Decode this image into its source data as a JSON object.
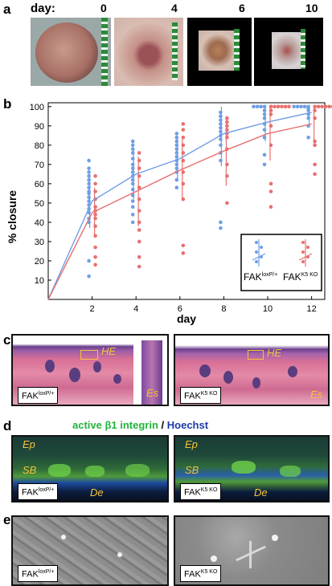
{
  "panels": {
    "a": {
      "letter": "a",
      "day_label": "day:",
      "days": [
        "0",
        "4",
        "6",
        "10"
      ]
    },
    "b": {
      "letter": "b",
      "legend": {
        "wt_label": "FAK",
        "wt_sup": "loxP/+",
        "ko_label": "FAK",
        "ko_sup": "K5 KO"
      }
    },
    "c": {
      "letter": "c",
      "left_label": "FAK",
      "left_sup": "loxP/+",
      "right_label": "FAK",
      "right_sup": "K5 KO",
      "he_label": "HE",
      "es_label": "Es"
    },
    "d": {
      "letter": "d",
      "title_green": "active β1 integrin",
      "title_sep": " / ",
      "title_blue": "Hoechst",
      "ep_label": "Ep",
      "sb_label": "SB",
      "de_label": "De",
      "left_label": "FAK",
      "left_sup": "loxP/+",
      "right_label": "FAK",
      "right_sup": "K5 KO"
    },
    "e": {
      "letter": "e",
      "left_label": "FAK",
      "left_sup": "loxP/+",
      "right_label": "FAK",
      "right_sup": "K5 KO"
    }
  },
  "colors": {
    "wt": "#6f9ee6",
    "ko": "#e8706f"
  },
  "chart_data": {
    "type": "scatter",
    "title": "",
    "xlabel": "day",
    "ylabel": "% closure",
    "xticks": [
      "2",
      "4",
      "6",
      "8",
      "10",
      "12"
    ],
    "yticks": [
      "10",
      "20",
      "30",
      "40",
      "50",
      "60",
      "70",
      "80",
      "90",
      "100"
    ],
    "xlim": [
      0,
      12.6
    ],
    "ylim": [
      0,
      102
    ],
    "series": [
      {
        "name": "FAK loxP/+",
        "color": "#6f9ee6",
        "x": [
          0,
          2,
          4,
          6,
          8,
          10,
          12
        ],
        "mean": [
          0,
          51,
          65,
          73,
          86,
          92,
          97
        ],
        "sd": [
          0,
          14,
          13,
          11,
          17,
          10,
          6
        ],
        "points": {
          "2": [
            72,
            68,
            66,
            64,
            62,
            60,
            58,
            56,
            55,
            53,
            51,
            49,
            47,
            45,
            42,
            40,
            20,
            12
          ],
          "4": [
            82,
            80,
            78,
            76,
            73,
            70,
            68,
            66,
            64,
            62,
            60,
            57,
            54,
            51,
            48,
            44,
            40
          ],
          "6": [
            86,
            84,
            82,
            80,
            78,
            76,
            74,
            72,
            70,
            68,
            66,
            62,
            58
          ],
          "8": [
            97,
            95,
            93,
            91,
            89,
            87,
            85,
            83,
            80,
            76,
            72,
            40,
            37
          ],
          "10": [
            100,
            100,
            100,
            100,
            98,
            96,
            94,
            91,
            88,
            84,
            75,
            70
          ],
          "12": [
            100,
            100,
            100,
            100,
            100,
            99,
            98,
            96,
            94,
            90,
            84
          ]
        }
      },
      {
        "name": "FAK K5 KO",
        "color": "#e8706f",
        "x": [
          0,
          2,
          4,
          6,
          8,
          10,
          12
        ],
        "mean": [
          0,
          45,
          56,
          67,
          77,
          86,
          91
        ],
        "sd": [
          0,
          13,
          18,
          16,
          18,
          14,
          10
        ],
        "points": {
          "2": [
            64,
            60,
            56,
            52,
            48,
            46,
            44,
            42,
            38,
            33,
            27,
            22,
            18
          ],
          "4": [
            76,
            72,
            68,
            64,
            58,
            52,
            46,
            40,
            36,
            30,
            22,
            17
          ],
          "6": [
            91,
            88,
            84,
            80,
            76,
            72,
            66,
            60,
            52,
            28,
            24
          ],
          "8": [
            94,
            92,
            90,
            88,
            86,
            84,
            78,
            70,
            64,
            50
          ],
          "10": [
            100,
            100,
            100,
            100,
            100,
            100,
            98,
            96,
            90,
            80,
            60,
            56,
            48
          ],
          "12": [
            100,
            100,
            100,
            100,
            100,
            100,
            100,
            98,
            94,
            82,
            80,
            70,
            65
          ]
        }
      }
    ]
  }
}
